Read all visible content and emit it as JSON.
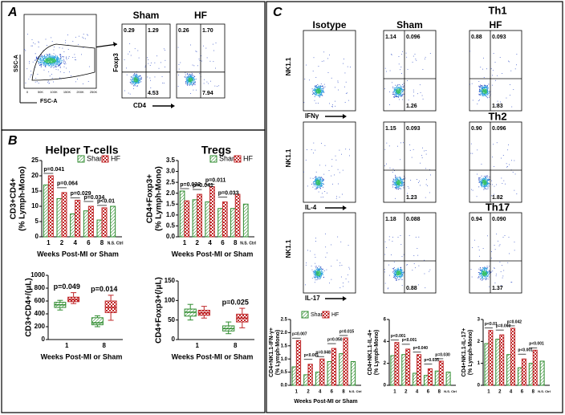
{
  "panels": {
    "a": "A",
    "b": "B",
    "c": "C"
  },
  "flow_a": {
    "gate": {
      "xlabel": "FSC-A",
      "ylabel": "SSC-A",
      "xticks": [
        "0",
        "50K",
        "100K",
        "150K",
        "200K",
        "250K"
      ]
    },
    "xlabel": "CD4",
    "ylabel": "Foxp3",
    "plots": [
      {
        "title": "Sham",
        "quadrants": [
          "0.29",
          "1.29",
          "4.53"
        ]
      },
      {
        "title": "HF",
        "quadrants": [
          "0.26",
          "1.70",
          "7.94"
        ]
      }
    ]
  },
  "flow_c": {
    "columns": [
      "Isotype",
      "Sham",
      "HF"
    ],
    "rows": [
      {
        "title": "Th1",
        "xlabel": "IFNγ",
        "ylabel": "NK1.1",
        "plots": [
          [
            "1.14",
            "0.096",
            "1.26"
          ],
          [
            "0.88",
            "0.093",
            "1.83"
          ]
        ]
      },
      {
        "title": "Th2",
        "xlabel": "IL-4",
        "ylabel": "NK1.1",
        "plots": [
          [
            "1.15",
            "0.093",
            "1.23"
          ],
          [
            "0.90",
            "0.096",
            "1.82"
          ]
        ]
      },
      {
        "title": "Th17",
        "xlabel": "IL-17",
        "ylabel": "NK1.1",
        "plots": [
          [
            "1.18",
            "0.088",
            "0.88"
          ],
          [
            "0.94",
            "0.090",
            "1.37"
          ]
        ]
      }
    ]
  },
  "chart_data": [
    {
      "type": "bar",
      "title": "Helper T-cells",
      "ylabel": [
        "CD3+CD4+",
        "(% Lymph-Mono)"
      ],
      "xlabel": "Weeks Post-MI or Sham",
      "categories": [
        "1",
        "2",
        "4",
        "6",
        "8",
        "N.S. Ctrl"
      ],
      "ylim": [
        0,
        25
      ],
      "yticks": [
        0,
        5,
        10,
        15,
        20,
        25
      ],
      "legend": "top-right",
      "series": [
        {
          "name": "Sham",
          "color": "#2e8b2e",
          "hatch": "lines",
          "values": [
            17,
            12.5,
            7.5,
            8.5,
            5.5,
            10
          ]
        },
        {
          "name": "HF",
          "color": "#c0282a",
          "hatch": "checks",
          "values": [
            20,
            14.5,
            12,
            10,
            9.5,
            null
          ]
        }
      ],
      "annotations": [
        "p=0.041",
        "p=0.064",
        "p=0.029",
        "p=0.034",
        "p<0.01"
      ]
    },
    {
      "type": "bar",
      "title": "Tregs",
      "ylabel": [
        "CD4+Foxp3+",
        "(% Lymph-Mono)"
      ],
      "xlabel": "Weeks Post-MI or Sham",
      "categories": [
        "1",
        "2",
        "4",
        "6",
        "8",
        "N.S. Ctrl"
      ],
      "ylim": [
        0,
        3.5
      ],
      "yticks": [
        {
          "value": 0,
          "label": "0.0"
        },
        0.5,
        {
          "value": 1,
          "label": "1.0"
        },
        1.5,
        {
          "value": 2,
          "label": "2.0"
        },
        2.5,
        {
          "value": 3,
          "label": "3.0"
        },
        3.5
      ],
      "legend": "top-right",
      "series": [
        {
          "name": "Sham",
          "color": "#2e8b2e",
          "hatch": "lines",
          "values": [
            2.1,
            1.7,
            1.6,
            1.3,
            1.3,
            1.5
          ]
        },
        {
          "name": "HF",
          "color": "#c0282a",
          "hatch": "checks",
          "values": [
            1.65,
            1.95,
            2.3,
            1.6,
            1.95,
            null
          ]
        }
      ],
      "annotations": [
        "p=0.032",
        "p=0.041",
        "p=0.011",
        "p=0.033"
      ]
    },
    {
      "type": "box",
      "ylabel": [
        "CD3+CD4+/(μL)"
      ],
      "xlabel": "Weeks Post-MI or Sham",
      "categories": [
        "1",
        "8"
      ],
      "ylim": [
        0,
        1000
      ],
      "yticks": [
        0,
        200,
        400,
        600,
        800,
        1000
      ],
      "series": [
        {
          "name": "Sham",
          "color": "#2e8b2e",
          "hatch": "lines",
          "values": [
            {
              "min": 460,
              "q1": 500,
              "median": 540,
              "q3": 580,
              "max": 610
            },
            {
              "min": 200,
              "q1": 230,
              "median": 260,
              "q3": 340,
              "max": 370
            }
          ]
        },
        {
          "name": "HF",
          "color": "#c0282a",
          "hatch": "checks",
          "values": [
            {
              "min": 560,
              "q1": 590,
              "median": 620,
              "q3": 660,
              "max": 730
            },
            {
              "min": 300,
              "q1": 420,
              "median": 500,
              "q3": 600,
              "max": 690
            }
          ]
        }
      ],
      "annotations": [
        "p=0.049",
        "p=0.014"
      ]
    },
    {
      "type": "box",
      "ylabel": [
        "CD4+Foxp3+(/μL)"
      ],
      "xlabel": "Weeks Post-MI or Sham",
      "categories": [
        "1",
        "8"
      ],
      "ylim": [
        0,
        150
      ],
      "yticks": [
        0,
        50,
        100,
        150
      ],
      "series": [
        {
          "name": "Sham",
          "color": "#2e8b2e",
          "hatch": "lines",
          "values": [
            {
              "min": 50,
              "q1": 60,
              "median": 70,
              "q3": 78,
              "max": 90
            },
            {
              "min": 15,
              "q1": 22,
              "median": 28,
              "q3": 35,
              "max": 45
            }
          ]
        },
        {
          "name": "HF",
          "color": "#c0282a",
          "hatch": "checks",
          "values": [
            {
              "min": 55,
              "q1": 62,
              "median": 68,
              "q3": 75,
              "max": 85
            },
            {
              "min": 30,
              "q1": 45,
              "median": 55,
              "q3": 65,
              "max": 80
            }
          ]
        }
      ],
      "annotations": [
        null,
        "p=0.025"
      ]
    },
    {
      "type": "bar",
      "ylabel": [
        "CD4+NK1.1-IFN-γ+",
        "(% Lymph-Mono)"
      ],
      "xlabel": "Weeks Post-MI or Sham",
      "categories": [
        "1",
        "2",
        "4",
        "6",
        "8",
        "N.S. Ctrl"
      ],
      "ylim": [
        0,
        2.5
      ],
      "yticks": [
        {
          "value": 0,
          "label": "0.0"
        },
        0.5,
        {
          "value": 1,
          "label": "1.0"
        },
        1.5,
        {
          "value": 2,
          "label": "2.0"
        },
        2.5
      ],
      "legend": "top-right",
      "series": [
        {
          "name": "Sham",
          "color": "#2e8b2e",
          "hatch": "lines",
          "values": [
            0.7,
            0.4,
            0.5,
            0.9,
            1.2,
            0.9
          ]
        },
        {
          "name": "HF",
          "color": "#c0282a",
          "hatch": "checks",
          "values": [
            1.7,
            0.8,
            1.0,
            1.4,
            1.8,
            null
          ]
        }
      ],
      "annotations": [
        "p=0.007",
        "p<0.001",
        "p=0.048",
        "p=0.050",
        "p=0.015"
      ]
    },
    {
      "type": "bar",
      "ylabel": [
        "CD4+NK1.1-IL-4+",
        "(% Lymph-Mono)"
      ],
      "categories": [
        "1",
        "2",
        "4",
        "6",
        "8",
        "N.S. Ctrl"
      ],
      "ylim": [
        0,
        6
      ],
      "yticks": [
        0,
        2,
        4,
        6
      ],
      "series": [
        {
          "name": "Sham",
          "color": "#2e8b2e",
          "hatch": "lines",
          "values": [
            2.7,
            2.8,
            1.1,
            0.9,
            1.3,
            1.2
          ]
        },
        {
          "name": "HF",
          "color": "#c0282a",
          "hatch": "checks",
          "values": [
            3.9,
            3.3,
            2.8,
            1.5,
            2.2,
            null
          ]
        }
      ],
      "annotations": [
        "p<0.001",
        "p<0.001",
        "p=0.040",
        "p=0.035",
        "p=0.030"
      ]
    },
    {
      "type": "bar",
      "ylabel": [
        "CD4+NK1.1-IL-17+",
        "(% Lymph-Mono)"
      ],
      "categories": [
        "1",
        "2",
        "4",
        "6",
        "8",
        "N.S. Ctrl"
      ],
      "ylim": [
        0,
        3
      ],
      "yticks": [
        0,
        1,
        2,
        3
      ],
      "series": [
        {
          "name": "Sham",
          "color": "#2e8b2e",
          "hatch": "lines",
          "values": [
            1.9,
            2.1,
            1.4,
            0.8,
            1.0,
            1.1
          ]
        },
        {
          "name": "HF",
          "color": "#c0282a",
          "hatch": "checks",
          "values": [
            2.5,
            2.3,
            2.6,
            1.2,
            1.6,
            null
          ]
        }
      ],
      "annotations": [
        "p<0.01",
        "p=0.003",
        "p=0.042",
        "p<0.001",
        "p<0.001"
      ]
    }
  ]
}
